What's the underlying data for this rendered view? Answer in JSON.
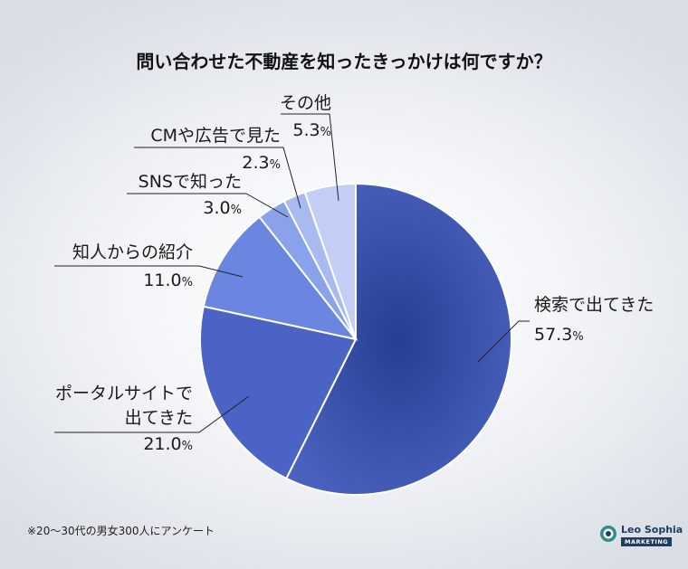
{
  "title": "問い合わせた不動産を知ったきっかけは何ですか？",
  "footnote": "※20～30代の男女300人にアンケート",
  "logo": {
    "name": "Leo Sophia",
    "sub": "MARKETING",
    "icon": "lion-head-icon"
  },
  "chart_data": {
    "type": "pie",
    "title": "問い合わせた不動産を知ったきっかけは何ですか？",
    "unit": "%",
    "slices": [
      {
        "label": "検索で出てきた",
        "value": 57.3,
        "value_text": "57.3",
        "color": "#3f55ad"
      },
      {
        "label": "ポータルサイトで出てきた",
        "label_lines": [
          "ポータルサイトで",
          "出てきた"
        ],
        "value": 21.0,
        "value_text": "21.0",
        "color": "#4a63c4"
      },
      {
        "label": "知人からの紹介",
        "value": 11.0,
        "value_text": "11.0",
        "color": "#6a86e0"
      },
      {
        "label": "SNSで知った",
        "value": 3.0,
        "value_text": "3.0",
        "color": "#8aa2ea"
      },
      {
        "label": "CMや広告で見た",
        "value": 2.3,
        "value_text": "2.3",
        "color": "#a9baf0"
      },
      {
        "label": "その他",
        "value": 5.3,
        "value_text": "5.3",
        "color": "#c3cef5"
      }
    ]
  }
}
